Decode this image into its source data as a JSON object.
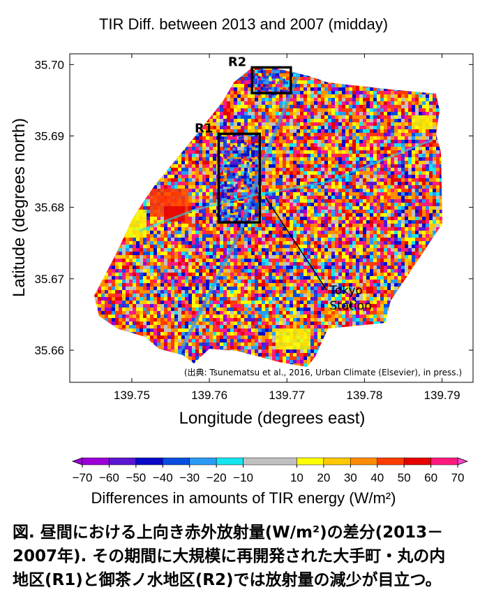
{
  "chart_data": {
    "type": "heatmap",
    "title": "TIR Diff. between 2013 and 2007 (midday)",
    "xlabel": "Longitude (degrees east)",
    "ylabel": "Latitude (degrees north)",
    "xlim": [
      139.742,
      139.794
    ],
    "ylim": [
      35.6555,
      35.7015
    ],
    "x_ticks": [
      "139.75",
      "139.76",
      "139.77",
      "139.78",
      "139.79"
    ],
    "x_tick_values": [
      139.75,
      139.76,
      139.77,
      139.78,
      139.79
    ],
    "y_ticks": [
      "35.66",
      "35.67",
      "35.68",
      "35.69",
      "35.70"
    ],
    "y_tick_values": [
      35.66,
      35.67,
      35.68,
      35.69,
      35.7
    ],
    "source_note": "(出典: Tsunematsu et al., 2016, Urban Climate (Elsevier), in press.)",
    "regions": [
      {
        "label": "R1",
        "lon": [
          139.7612,
          139.7665
        ],
        "lat": [
          35.6779,
          35.6903
        ]
      },
      {
        "label": "R2",
        "lon": [
          139.7655,
          139.7705
        ],
        "lat": [
          35.696,
          35.6996
        ]
      }
    ],
    "annotation": {
      "text": [
        "Tokyo",
        "Station"
      ],
      "point": [
        139.7673,
        35.6813
      ],
      "text_pos": [
        139.7755,
        35.6686
      ]
    },
    "colorbar": {
      "label": "Differences in amounts of TIR energy (W/m²)",
      "ticks": [
        "−70",
        "−60",
        "−50",
        "−40",
        "−30",
        "−20",
        "−10",
        "10",
        "20",
        "30",
        "40",
        "50",
        "60",
        "70"
      ],
      "tick_values": [
        -70,
        -60,
        -50,
        -40,
        -30,
        -20,
        -10,
        10,
        20,
        30,
        40,
        50,
        60,
        70
      ],
      "bins": [
        {
          "from": -70,
          "to": -60,
          "color": "#9b00d9"
        },
        {
          "from": -60,
          "to": -50,
          "color": "#5a16d0"
        },
        {
          "from": -50,
          "to": -40,
          "color": "#0a0ac8"
        },
        {
          "from": -40,
          "to": -30,
          "color": "#0a4ee0"
        },
        {
          "from": -30,
          "to": -20,
          "color": "#2a9bf5"
        },
        {
          "from": -20,
          "to": -10,
          "color": "#15e5f0"
        },
        {
          "from": -10,
          "to": 10,
          "color": "#c0c0c0"
        },
        {
          "from": 10,
          "to": 20,
          "color": "#ffff00"
        },
        {
          "from": 20,
          "to": 30,
          "color": "#ffc800"
        },
        {
          "from": 30,
          "to": 40,
          "color": "#ff8c00"
        },
        {
          "from": 40,
          "to": 50,
          "color": "#ff3c00"
        },
        {
          "from": 50,
          "to": 60,
          "color": "#e60000"
        },
        {
          "from": 60,
          "to": 70,
          "color": "#ff1a80"
        }
      ],
      "under_color": "#9b00d9",
      "over_color": "#ff44cc"
    }
  },
  "caption": {
    "lines": [
      "図. 昼間における上向き赤外放射量(W/m²)の差分(2013－",
      "2007年). その期間に大規模に再開発された大手町・丸の内",
      "地区(R1)と御茶ノ水地区(R2)では放射量の減少が目立つ。"
    ]
  }
}
